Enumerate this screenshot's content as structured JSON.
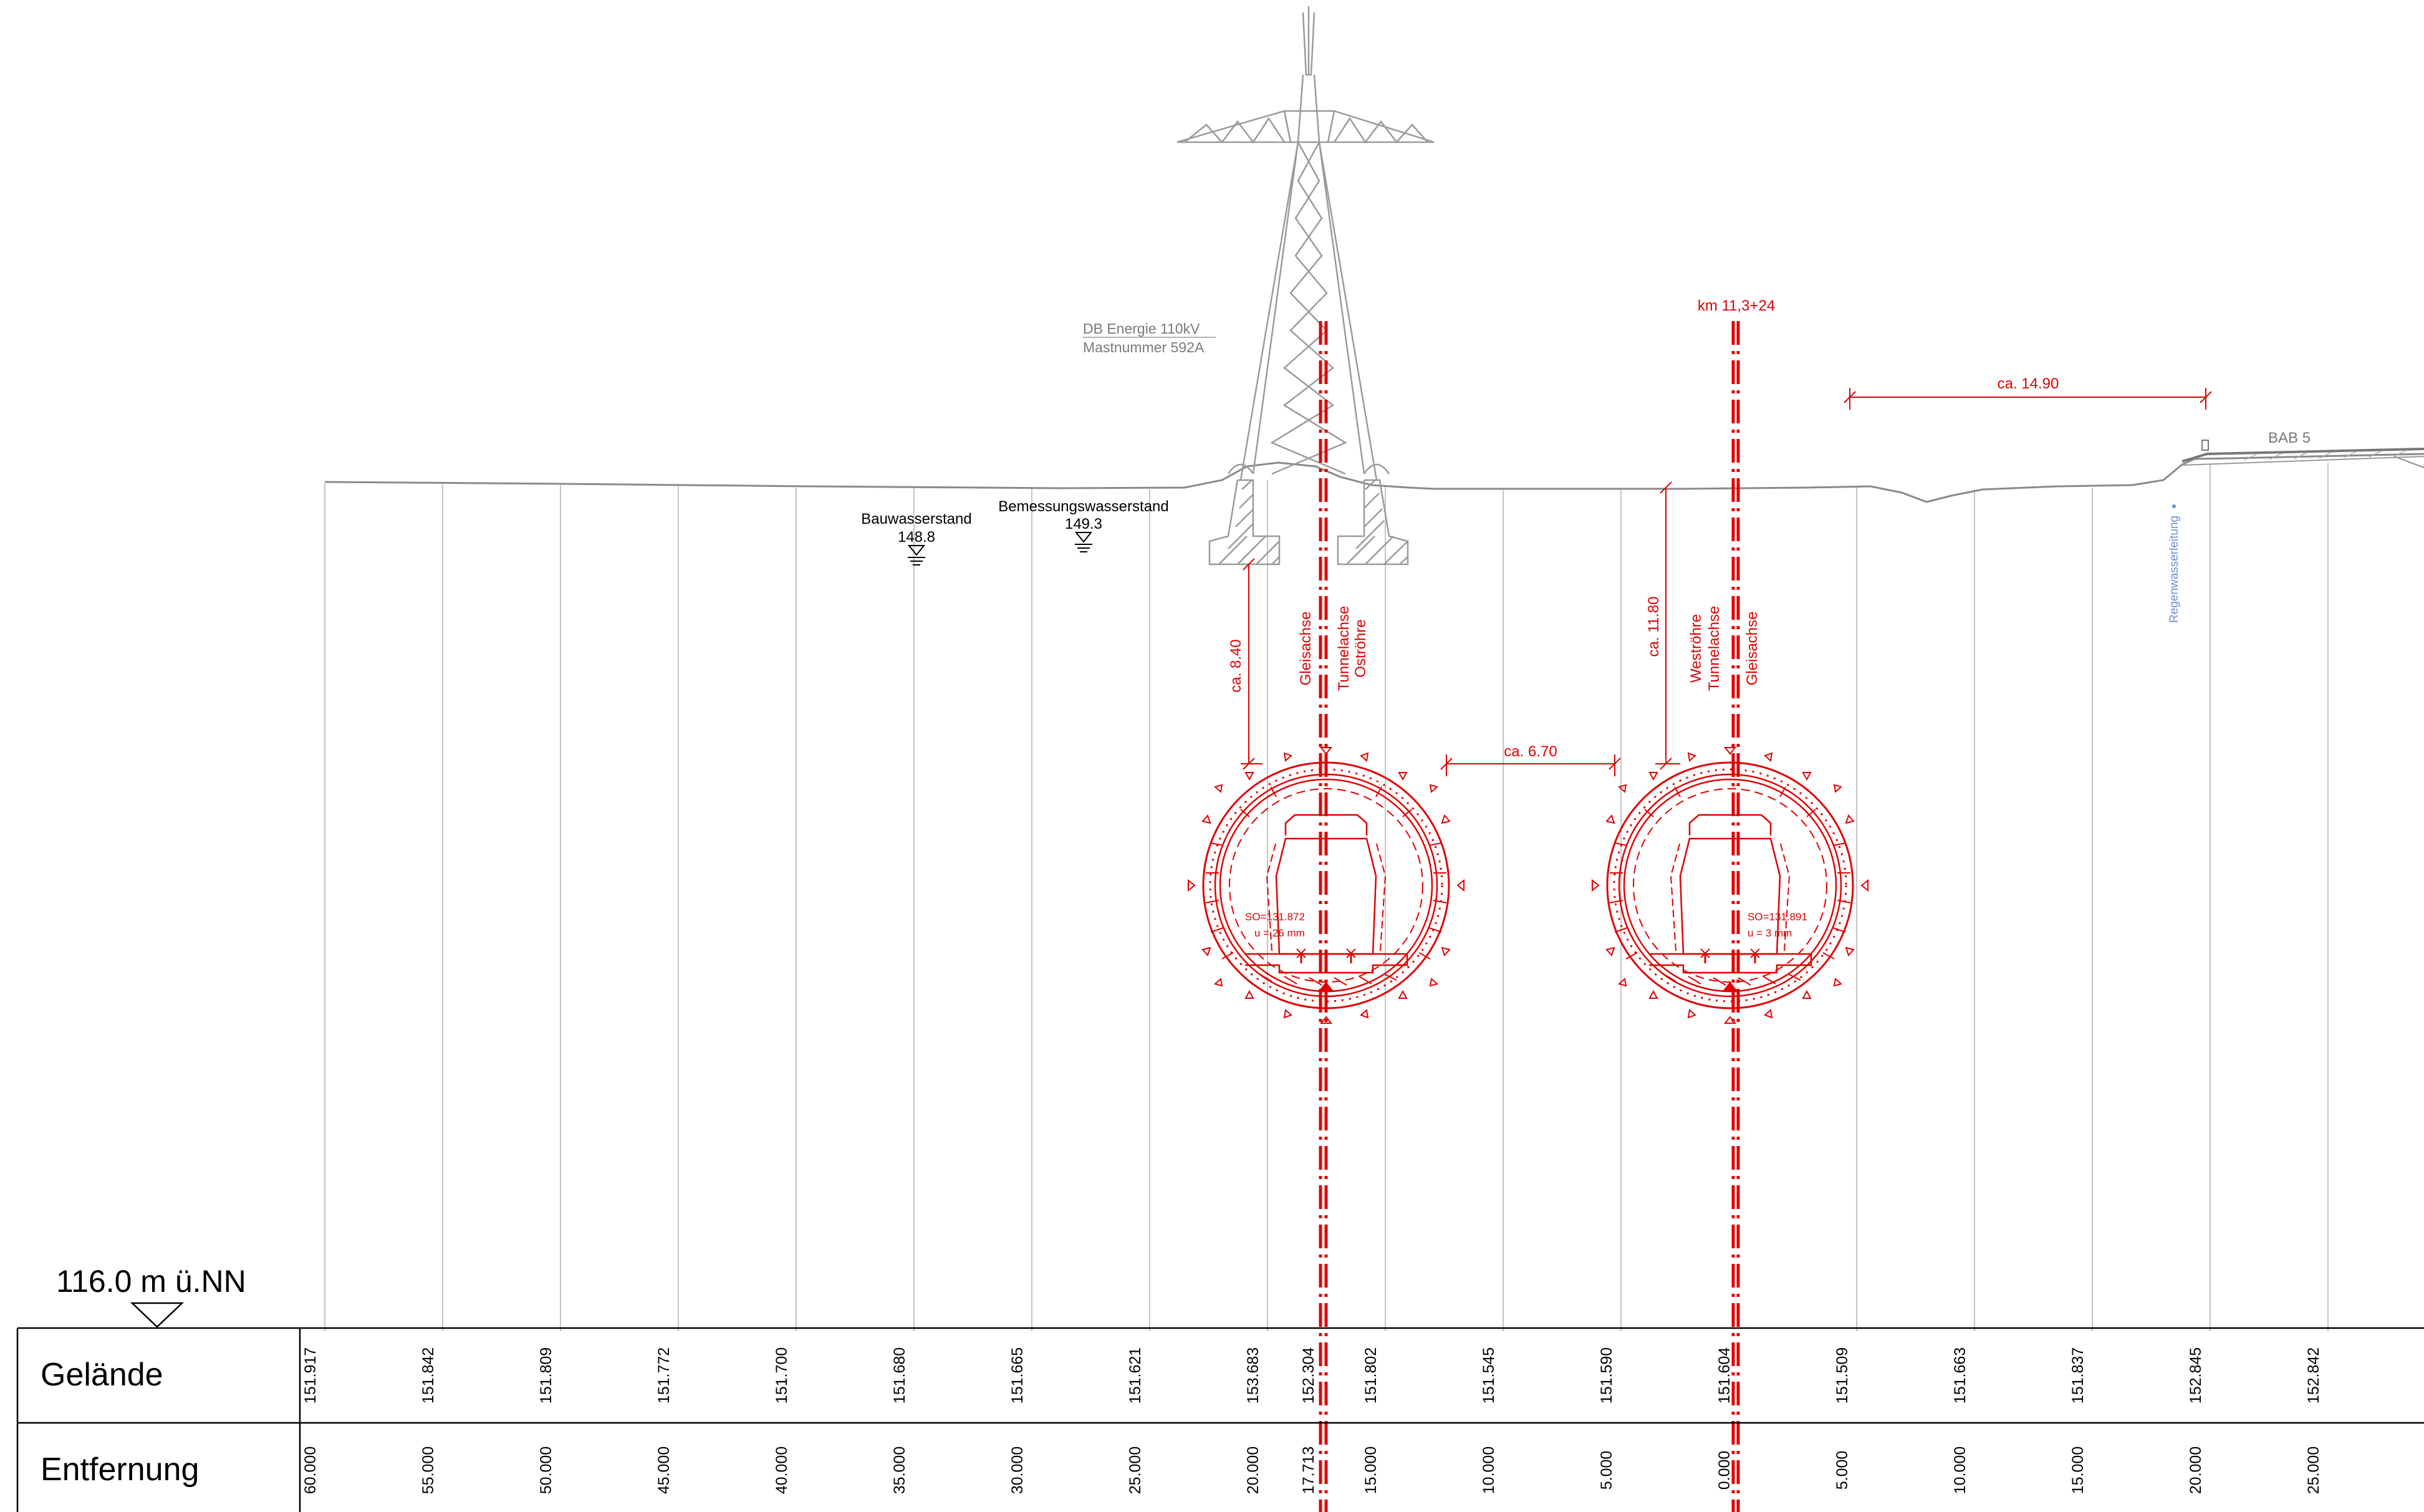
{
  "colors": {
    "annotation": "#e00000",
    "structure": "#9a9a9a",
    "terrain": "#8a8a8a",
    "text": "#000000",
    "drainage": "#6a8fd6"
  },
  "reference": {
    "level_label": "116.0 m ü.NN"
  },
  "table": {
    "row1_label": "Gelände",
    "row2_label": "Entfernung",
    "gelaende": [
      "151.917",
      "151.842",
      "151.809",
      "151.772",
      "151.700",
      "151.680",
      "151.665",
      "151.621",
      "153.683",
      "152.304",
      "151.802",
      "151.545",
      "151.590",
      "151.604",
      "151.509",
      "151.663",
      "151.837",
      "152.845",
      "152.842"
    ],
    "entfernung": [
      "60.000",
      "55.000",
      "50.000",
      "45.000",
      "40.000",
      "35.000",
      "30.000",
      "25.000",
      "20.000",
      "17.713",
      "15.000",
      "10.000",
      "5.000",
      "0.000",
      "5.000",
      "10.000",
      "15.000",
      "20.000",
      "25.000"
    ]
  },
  "mast": {
    "line1": "DB Energie 110kV",
    "line2": "Mastnummer 592A"
  },
  "water": {
    "bau": {
      "label": "Bauwasserstand",
      "value": "148.8"
    },
    "bemessung": {
      "label": "Bemessungswasserstand",
      "value": "149.3"
    }
  },
  "station": "km 11,3+24",
  "dims": {
    "d1": "ca. 14.90",
    "d2": "ca. 8.40",
    "d3": "ca. 6.70",
    "d4": "ca. 11.80"
  },
  "axes": {
    "ost": [
      "Gleisachse",
      "Tunnelachse",
      "Oströhre"
    ],
    "west": [
      "Weströhre",
      "Tunnelachse",
      "Gleisachse"
    ]
  },
  "tunnels": {
    "ost": {
      "so": "SO=131.872",
      "u": "u = 26 mm"
    },
    "west": {
      "so": "SO=131.891",
      "u": "u = 3 mm"
    }
  },
  "road": "BAB 5",
  "drain": "Regenwasserleitung"
}
